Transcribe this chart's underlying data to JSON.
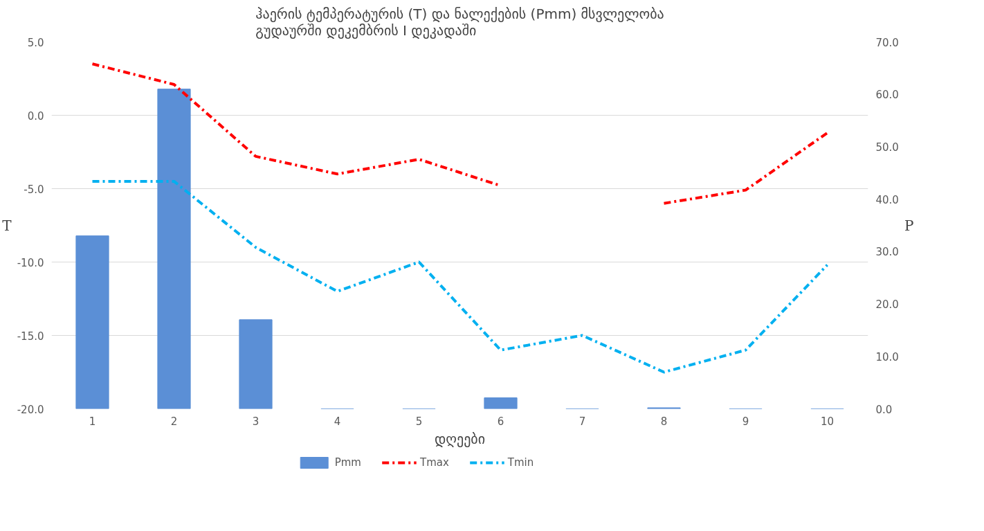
{
  "chart_data": {
    "type": "bar",
    "title": "ჰაერის ტემპერატურის (T) და ნალექების (Pmm) მსვლელობა\nგუდაურში  დეკემბრის I დეკადაში",
    "xlabel": "დღეები",
    "ylabel": "T",
    "y2label": "P",
    "categories": [
      "1",
      "2",
      "3",
      "4",
      "5",
      "6",
      "7",
      "8",
      "9",
      "10"
    ],
    "series": [
      {
        "name": "Pmm",
        "axis": "y2",
        "color": "#5b8fd6",
        "values": [
          33.0,
          61.0,
          17.0,
          0,
          0,
          2.1,
          0,
          0.2,
          0,
          0
        ]
      },
      {
        "name": "Tmax",
        "type": "line",
        "color": "#ff0000",
        "line_style": "dashed",
        "values": [
          3.5,
          2.1,
          -2.8,
          -4.0,
          -3.0,
          -4.8,
          null,
          -6.0,
          -5.1,
          -1.2
        ]
      },
      {
        "name": "Tmin",
        "type": "line",
        "color": "#00b0f0",
        "line_style": "dashed",
        "values": [
          -4.5,
          -4.5,
          -9.0,
          -12.0,
          -10.0,
          -16.0,
          -15.0,
          -17.5,
          -16.0,
          -10.2
        ]
      }
    ],
    "ylim": [
      -20,
      5
    ],
    "yticks": [
      {
        "value": -20,
        "label": "-20.0"
      },
      {
        "value": -15,
        "label": "-15.0"
      },
      {
        "value": -10,
        "label": "-10.0"
      },
      {
        "value": -5,
        "label": "-5.0"
      },
      {
        "value": 0,
        "label": "0.0"
      },
      {
        "value": 5,
        "label": "5.0"
      }
    ],
    "y2lim": [
      0,
      70
    ],
    "y2ticks": [
      {
        "value": 0,
        "label": "0.0"
      },
      {
        "value": 10,
        "label": "10.0"
      },
      {
        "value": 20,
        "label": "20.0"
      },
      {
        "value": 30,
        "label": "30.0"
      },
      {
        "value": 40,
        "label": "40.0"
      },
      {
        "value": 50,
        "label": "50.0"
      },
      {
        "value": 60,
        "label": "60.0"
      },
      {
        "value": 70,
        "label": "70.0"
      }
    ],
    "grid": "y",
    "legend": "bottom"
  }
}
